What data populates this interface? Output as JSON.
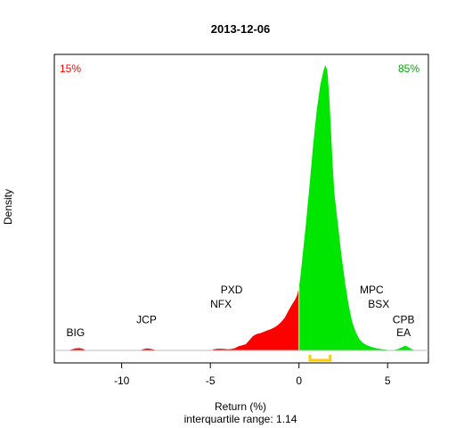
{
  "chart_data": {
    "type": "area",
    "title": "2013-12-06",
    "xlabel": "Return (%)",
    "ylabel": "Density",
    "subtitle": "interquartile range: 1.14",
    "xlim": [
      -13.8,
      7.3
    ],
    "ylim": [
      0,
      1
    ],
    "xticks": [
      -10,
      -5,
      0,
      5
    ],
    "xtick_labels": [
      "-10",
      "-5",
      "0",
      "5"
    ],
    "pct_negative": "15%",
    "pct_positive": "85%",
    "colors": {
      "negative": "#ff0000",
      "positive": "#00e600",
      "iqr": "#ffcc00",
      "baseline": "#bebebe"
    },
    "iqr": [
      0.62,
      1.76
    ],
    "density": {
      "x": [
        -13.0,
        -12.8,
        -12.6,
        -12.4,
        -12.2,
        -12.0,
        -11.0,
        -9.5,
        -9.0,
        -8.8,
        -8.6,
        -8.4,
        -8.2,
        -8.0,
        -6.0,
        -5.0,
        -4.8,
        -4.6,
        -4.4,
        -4.2,
        -4.0,
        -3.8,
        -3.6,
        -3.4,
        -3.2,
        -3.0,
        -2.8,
        -2.6,
        -2.4,
        -2.2,
        -2.0,
        -1.8,
        -1.6,
        -1.4,
        -1.2,
        -1.0,
        -0.8,
        -0.6,
        -0.4,
        -0.2,
        -0.1,
        0.0,
        0.1,
        0.2,
        0.4,
        0.6,
        0.8,
        1.0,
        1.2,
        1.4,
        1.5,
        1.6,
        1.7,
        1.8,
        1.9,
        2.0,
        2.2,
        2.4,
        2.6,
        2.8,
        3.0,
        3.2,
        3.4,
        3.6,
        3.8,
        4.0,
        4.2,
        4.4,
        4.6,
        4.8,
        5.0,
        5.2,
        5.4,
        5.6,
        5.8,
        6.0,
        6.2,
        6.4,
        6.6,
        7.0
      ],
      "y": [
        0,
        0.004,
        0.007,
        0.008,
        0.006,
        0,
        0,
        0,
        0,
        0.004,
        0.007,
        0.006,
        0.003,
        0,
        0,
        0,
        0.004,
        0.006,
        0.006,
        0.005,
        0.004,
        0.005,
        0.008,
        0.015,
        0.018,
        0.022,
        0.036,
        0.05,
        0.057,
        0.06,
        0.065,
        0.07,
        0.074,
        0.08,
        0.088,
        0.1,
        0.115,
        0.138,
        0.16,
        0.18,
        0.195,
        0.22,
        0.27,
        0.33,
        0.45,
        0.58,
        0.72,
        0.84,
        0.93,
        0.985,
        1.0,
        0.98,
        0.9,
        0.78,
        0.65,
        0.55,
        0.44,
        0.33,
        0.24,
        0.16,
        0.1,
        0.065,
        0.04,
        0.027,
        0.019,
        0.014,
        0.01,
        0.007,
        0.005,
        0.003,
        0.002,
        0.001,
        0.002,
        0.005,
        0.011,
        0.017,
        0.01,
        0.003,
        0,
        0
      ]
    },
    "annotations": [
      {
        "label": "BIG",
        "x": -12.6,
        "y": 0.05
      },
      {
        "label": "JCP",
        "x": -8.6,
        "y": 0.095
      },
      {
        "label": "PXD",
        "x": -3.8,
        "y": 0.2
      },
      {
        "label": "NFX",
        "x": -4.4,
        "y": 0.15
      },
      {
        "label": "MPC",
        "x": 4.1,
        "y": 0.2
      },
      {
        "label": "BSX",
        "x": 4.5,
        "y": 0.15
      },
      {
        "label": "CPB",
        "x": 5.9,
        "y": 0.095
      },
      {
        "label": "EA",
        "x": 5.9,
        "y": 0.05
      }
    ]
  }
}
